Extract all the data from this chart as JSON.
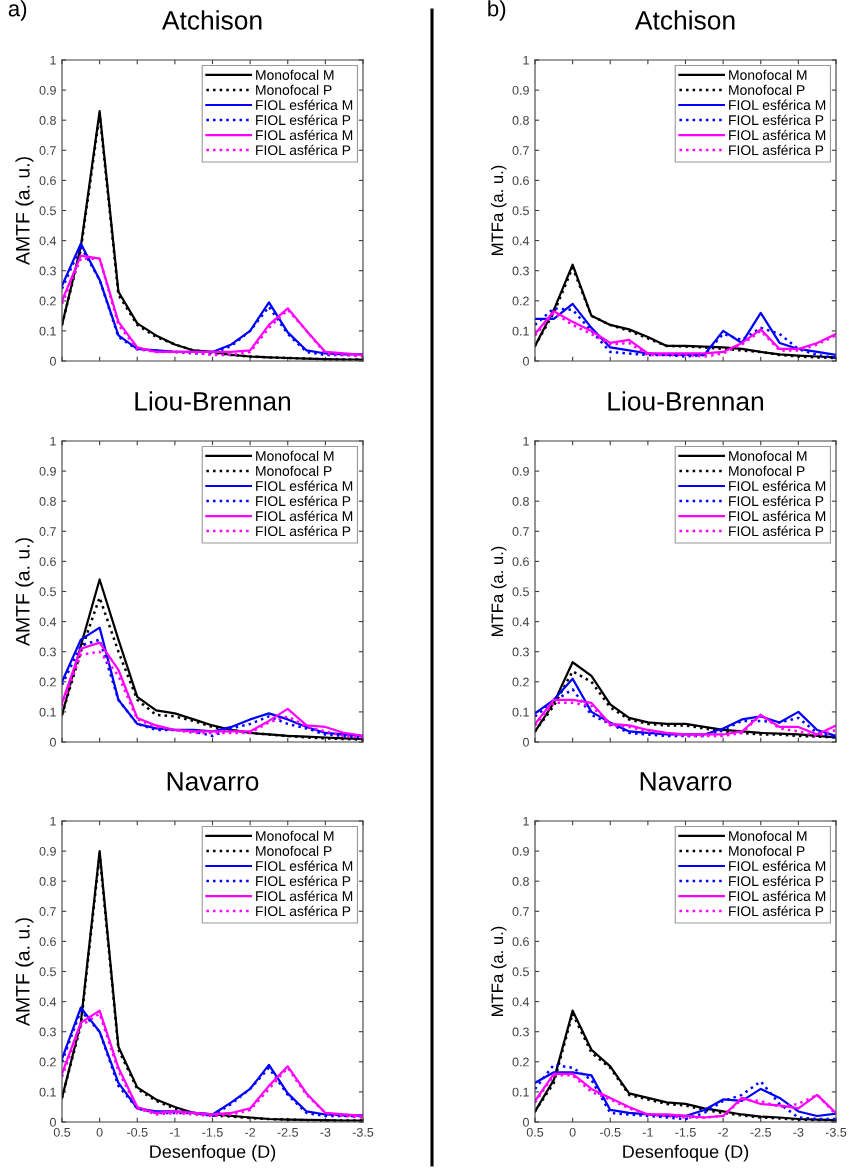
{
  "chart_data": [
    {
      "type": "line",
      "title": "Atchison",
      "ylabel": "AMTF (a. u.)",
      "annotations": [
        "a)"
      ],
      "x": [
        0.5,
        0.25,
        0,
        -0.25,
        -0.5,
        -0.75,
        -1,
        -1.25,
        -1.5,
        -1.75,
        -2,
        -2.25,
        -2.5,
        -2.75,
        -3,
        -3.25,
        -3.5
      ],
      "xlim": [
        0.5,
        -3.5
      ],
      "xticks": [
        0.5,
        0,
        -0.5,
        -1,
        -1.5,
        -2,
        -2.5,
        -3,
        -3.5
      ],
      "ylim": [
        0,
        1
      ],
      "yticks": [
        0,
        0.1,
        0.2,
        0.3,
        0.4,
        0.5,
        0.6,
        0.7,
        0.8,
        0.9,
        1
      ],
      "tick_labels": "y",
      "legend": "top right",
      "grid": false,
      "series": [
        {
          "name": "Monofocal M",
          "color": "#000000",
          "line_style": "solid",
          "values": [
            0.12,
            0.38,
            0.83,
            0.23,
            0.125,
            0.085,
            0.055,
            0.035,
            0.03,
            0.02,
            0.015,
            0.012,
            0.01,
            0.008,
            0.006,
            0.005,
            0.005
          ]
        },
        {
          "name": "Monofocal P",
          "color": "#000000",
          "line_style": "dotted",
          "values": [
            0.12,
            0.37,
            0.82,
            0.22,
            0.12,
            0.08,
            0.055,
            0.035,
            0.028,
            0.02,
            0.015,
            0.012,
            0.01,
            0.008,
            0.006,
            0.005,
            0.005
          ]
        },
        {
          "name": "FIOL esférica M",
          "color": "#0000ff",
          "line_style": "solid",
          "values": [
            0.25,
            0.39,
            0.27,
            0.085,
            0.04,
            0.035,
            0.03,
            0.03,
            0.03,
            0.055,
            0.1,
            0.195,
            0.095,
            0.035,
            0.025,
            0.022,
            0.022
          ]
        },
        {
          "name": "FIOL esférica P",
          "color": "#0000ff",
          "line_style": "dotted",
          "values": [
            0.24,
            0.38,
            0.27,
            0.08,
            0.038,
            0.035,
            0.03,
            0.025,
            0.025,
            0.05,
            0.1,
            0.18,
            0.09,
            0.03,
            0.02,
            0.02,
            0.02
          ]
        },
        {
          "name": "FIOL asférica M",
          "color": "#ff00ff",
          "line_style": "solid",
          "values": [
            0.2,
            0.35,
            0.34,
            0.13,
            0.045,
            0.03,
            0.03,
            0.03,
            0.03,
            0.03,
            0.035,
            0.12,
            0.175,
            0.1,
            0.03,
            0.025,
            0.02
          ]
        },
        {
          "name": "FIOL asférica P",
          "color": "#ff00ff",
          "line_style": "dotted",
          "values": [
            0.19,
            0.34,
            0.34,
            0.12,
            0.04,
            0.03,
            0.03,
            0.028,
            0.02,
            0.02,
            0.03,
            0.11,
            0.17,
            0.1,
            0.025,
            0.02,
            0.015
          ]
        }
      ]
    },
    {
      "type": "line",
      "title": "Atchison",
      "ylabel": "MTFa (a. u.)",
      "annotations": [
        "b)"
      ],
      "x": [
        0.5,
        0.25,
        0,
        -0.25,
        -0.5,
        -0.75,
        -1,
        -1.25,
        -1.5,
        -1.75,
        -2,
        -2.25,
        -2.5,
        -2.75,
        -3,
        -3.25,
        -3.5
      ],
      "xlim": [
        0.5,
        -3.5
      ],
      "xticks": [
        0.5,
        0,
        -0.5,
        -1,
        -1.5,
        -2,
        -2.5,
        -3,
        -3.5
      ],
      "ylim": [
        0,
        1
      ],
      "yticks": [
        0,
        0.1,
        0.2,
        0.3,
        0.4,
        0.5,
        0.6,
        0.7,
        0.8,
        0.9,
        1
      ],
      "tick_labels": "y",
      "legend": "top right",
      "grid": false,
      "series": [
        {
          "name": "Monofocal M",
          "color": "#000000",
          "line_style": "solid",
          "values": [
            0.05,
            0.17,
            0.32,
            0.15,
            0.12,
            0.105,
            0.08,
            0.05,
            0.05,
            0.048,
            0.045,
            0.04,
            0.03,
            0.022,
            0.018,
            0.015,
            0.012
          ]
        },
        {
          "name": "Monofocal P",
          "color": "#000000",
          "line_style": "dotted",
          "values": [
            0.05,
            0.16,
            0.31,
            0.15,
            0.12,
            0.1,
            0.075,
            0.05,
            0.048,
            0.045,
            0.04,
            0.035,
            0.03,
            0.02,
            0.015,
            0.012,
            0.01
          ]
        },
        {
          "name": "FIOL esférica M",
          "color": "#0000ff",
          "line_style": "solid",
          "values": [
            0.14,
            0.14,
            0.19,
            0.11,
            0.045,
            0.035,
            0.025,
            0.02,
            0.02,
            0.02,
            0.1,
            0.06,
            0.16,
            0.06,
            0.04,
            0.03,
            0.02
          ]
        },
        {
          "name": "FIOL esférica P",
          "color": "#0000ff",
          "line_style": "dotted",
          "values": [
            0.12,
            0.175,
            0.17,
            0.1,
            0.03,
            0.025,
            0.02,
            0.02,
            0.015,
            0.02,
            0.09,
            0.07,
            0.11,
            0.09,
            0.04,
            0.02,
            0.01
          ]
        },
        {
          "name": "FIOL asférica M",
          "color": "#ff00ff",
          "line_style": "solid",
          "values": [
            0.09,
            0.165,
            0.13,
            0.1,
            0.06,
            0.07,
            0.025,
            0.025,
            0.025,
            0.025,
            0.03,
            0.06,
            0.105,
            0.04,
            0.04,
            0.06,
            0.09
          ]
        },
        {
          "name": "FIOL asférica P",
          "color": "#ff00ff",
          "line_style": "dotted",
          "values": [
            0.085,
            0.16,
            0.12,
            0.09,
            0.055,
            0.06,
            0.02,
            0.02,
            0.02,
            0.015,
            0.025,
            0.055,
            0.1,
            0.035,
            0.035,
            0.055,
            0.085
          ]
        }
      ]
    },
    {
      "type": "line",
      "title": "Liou-Brennan",
      "ylabel": "AMTF (a. u.)",
      "x": [
        0.5,
        0.25,
        0,
        -0.25,
        -0.5,
        -0.75,
        -1,
        -1.25,
        -1.5,
        -1.75,
        -2,
        -2.25,
        -2.5,
        -2.75,
        -3,
        -3.25,
        -3.5
      ],
      "xlim": [
        0.5,
        -3.5
      ],
      "xticks": [
        0.5,
        0,
        -0.5,
        -1,
        -1.5,
        -2,
        -2.5,
        -3,
        -3.5
      ],
      "ylim": [
        0,
        1
      ],
      "yticks": [
        0,
        0.1,
        0.2,
        0.3,
        0.4,
        0.5,
        0.6,
        0.7,
        0.8,
        0.9,
        1
      ],
      "tick_labels": "y",
      "legend": "top right",
      "grid": false,
      "series": [
        {
          "name": "Monofocal M",
          "color": "#000000",
          "line_style": "solid",
          "values": [
            0.09,
            0.32,
            0.54,
            0.34,
            0.15,
            0.105,
            0.095,
            0.075,
            0.055,
            0.04,
            0.03,
            0.025,
            0.02,
            0.018,
            0.015,
            0.012,
            0.01
          ]
        },
        {
          "name": "Monofocal P",
          "color": "#000000",
          "line_style": "dotted",
          "values": [
            0.09,
            0.3,
            0.48,
            0.3,
            0.14,
            0.09,
            0.085,
            0.07,
            0.05,
            0.04,
            0.03,
            0.025,
            0.02,
            0.015,
            0.012,
            0.01,
            0.008
          ]
        },
        {
          "name": "FIOL esférica M",
          "color": "#0000ff",
          "line_style": "solid",
          "values": [
            0.2,
            0.34,
            0.38,
            0.14,
            0.06,
            0.045,
            0.04,
            0.04,
            0.035,
            0.05,
            0.075,
            0.095,
            0.075,
            0.05,
            0.03,
            0.025,
            0.02
          ]
        },
        {
          "name": "FIOL esférica P",
          "color": "#0000ff",
          "line_style": "dotted",
          "values": [
            0.19,
            0.32,
            0.34,
            0.14,
            0.06,
            0.04,
            0.04,
            0.035,
            0.02,
            0.045,
            0.06,
            0.085,
            0.06,
            0.045,
            0.025,
            0.02,
            0.015
          ]
        },
        {
          "name": "FIOL asférica M",
          "color": "#ff00ff",
          "line_style": "solid",
          "values": [
            0.13,
            0.31,
            0.33,
            0.24,
            0.08,
            0.055,
            0.04,
            0.035,
            0.035,
            0.035,
            0.035,
            0.07,
            0.11,
            0.055,
            0.05,
            0.03,
            0.02
          ]
        },
        {
          "name": "FIOL asférica P",
          "color": "#ff00ff",
          "line_style": "dotted",
          "values": [
            0.12,
            0.29,
            0.3,
            0.22,
            0.075,
            0.05,
            0.04,
            0.03,
            0.03,
            0.03,
            0.03,
            0.065,
            0.085,
            0.05,
            0.035,
            0.02,
            0.015
          ]
        }
      ]
    },
    {
      "type": "line",
      "title": "Liou-Brennan",
      "ylabel": "MTFa (a. u.)",
      "x": [
        0.5,
        0.25,
        0,
        -0.25,
        -0.5,
        -0.75,
        -1,
        -1.25,
        -1.5,
        -1.75,
        -2,
        -2.25,
        -2.5,
        -2.75,
        -3,
        -3.25,
        -3.5
      ],
      "xlim": [
        0.5,
        -3.5
      ],
      "xticks": [
        0.5,
        0,
        -0.5,
        -1,
        -1.5,
        -2,
        -2.5,
        -3,
        -3.5
      ],
      "ylim": [
        0,
        1
      ],
      "yticks": [
        0,
        0.1,
        0.2,
        0.3,
        0.4,
        0.5,
        0.6,
        0.7,
        0.8,
        0.9,
        1
      ],
      "tick_labels": "y",
      "legend": "top right",
      "grid": false,
      "series": [
        {
          "name": "Monofocal M",
          "color": "#000000",
          "line_style": "solid",
          "values": [
            0.035,
            0.13,
            0.265,
            0.22,
            0.125,
            0.08,
            0.065,
            0.06,
            0.06,
            0.05,
            0.04,
            0.035,
            0.03,
            0.028,
            0.025,
            0.02,
            0.015
          ]
        },
        {
          "name": "Monofocal P",
          "color": "#000000",
          "line_style": "dotted",
          "values": [
            0.035,
            0.12,
            0.235,
            0.2,
            0.115,
            0.075,
            0.06,
            0.055,
            0.055,
            0.045,
            0.035,
            0.03,
            0.025,
            0.025,
            0.02,
            0.018,
            0.015
          ]
        },
        {
          "name": "FIOL esférica M",
          "color": "#0000ff",
          "line_style": "solid",
          "values": [
            0.095,
            0.14,
            0.21,
            0.1,
            0.065,
            0.035,
            0.03,
            0.025,
            0.025,
            0.025,
            0.045,
            0.075,
            0.085,
            0.065,
            0.1,
            0.04,
            0.02
          ]
        },
        {
          "name": "FIOL esférica P",
          "color": "#0000ff",
          "line_style": "dotted",
          "values": [
            0.085,
            0.135,
            0.175,
            0.09,
            0.06,
            0.03,
            0.025,
            0.02,
            0.02,
            0.02,
            0.04,
            0.07,
            0.07,
            0.065,
            0.08,
            0.03,
            0.015
          ]
        },
        {
          "name": "FIOL asférica M",
          "color": "#ff00ff",
          "line_style": "solid",
          "values": [
            0.06,
            0.14,
            0.14,
            0.13,
            0.06,
            0.055,
            0.04,
            0.03,
            0.025,
            0.025,
            0.025,
            0.035,
            0.09,
            0.05,
            0.05,
            0.025,
            0.055
          ]
        },
        {
          "name": "FIOL asférica P",
          "color": "#ff00ff",
          "line_style": "dotted",
          "values": [
            0.055,
            0.13,
            0.13,
            0.12,
            0.055,
            0.05,
            0.035,
            0.03,
            0.02,
            0.02,
            0.02,
            0.03,
            0.09,
            0.045,
            0.035,
            0.02,
            0.04
          ]
        }
      ]
    },
    {
      "type": "line",
      "title": "Navarro",
      "ylabel": "AMTF (a. u.)",
      "xlabel": "Desenfoque (D)",
      "x": [
        0.5,
        0.25,
        0,
        -0.25,
        -0.5,
        -0.75,
        -1,
        -1.25,
        -1.5,
        -1.75,
        -2,
        -2.25,
        -2.5,
        -2.75,
        -3,
        -3.25,
        -3.5
      ],
      "xlim": [
        0.5,
        -3.5
      ],
      "xticks": [
        0.5,
        0,
        -0.5,
        -1,
        -1.5,
        -2,
        -2.5,
        -3,
        -3.5
      ],
      "ylim": [
        0,
        1
      ],
      "yticks": [
        0,
        0.1,
        0.2,
        0.3,
        0.4,
        0.5,
        0.6,
        0.7,
        0.8,
        0.9,
        1
      ],
      "legend": "top right",
      "grid": false,
      "series": [
        {
          "name": "Monofocal M",
          "color": "#000000",
          "line_style": "solid",
          "values": [
            0.08,
            0.33,
            0.9,
            0.25,
            0.115,
            0.075,
            0.05,
            0.03,
            0.025,
            0.02,
            0.015,
            0.01,
            0.008,
            0.007,
            0.006,
            0.005,
            0.005
          ]
        },
        {
          "name": "Monofocal P",
          "color": "#000000",
          "line_style": "dotted",
          "values": [
            0.08,
            0.32,
            0.89,
            0.24,
            0.11,
            0.07,
            0.045,
            0.03,
            0.022,
            0.018,
            0.013,
            0.01,
            0.008,
            0.006,
            0.005,
            0.005,
            0.005
          ]
        },
        {
          "name": "FIOL esférica M",
          "color": "#0000ff",
          "line_style": "solid",
          "values": [
            0.21,
            0.38,
            0.3,
            0.13,
            0.045,
            0.035,
            0.035,
            0.03,
            0.025,
            0.065,
            0.11,
            0.19,
            0.095,
            0.035,
            0.025,
            0.022,
            0.022
          ]
        },
        {
          "name": "FIOL esférica P",
          "color": "#0000ff",
          "line_style": "dotted",
          "values": [
            0.2,
            0.37,
            0.3,
            0.12,
            0.045,
            0.03,
            0.03,
            0.03,
            0.02,
            0.06,
            0.11,
            0.18,
            0.09,
            0.03,
            0.02,
            0.02,
            0.02
          ]
        },
        {
          "name": "FIOL asférica M",
          "color": "#ff00ff",
          "line_style": "solid",
          "values": [
            0.16,
            0.33,
            0.37,
            0.18,
            0.05,
            0.03,
            0.035,
            0.03,
            0.025,
            0.03,
            0.045,
            0.12,
            0.185,
            0.095,
            0.03,
            0.025,
            0.02
          ]
        },
        {
          "name": "FIOL asférica P",
          "color": "#ff00ff",
          "line_style": "dotted",
          "values": [
            0.15,
            0.32,
            0.36,
            0.17,
            0.045,
            0.025,
            0.03,
            0.025,
            0.02,
            0.025,
            0.04,
            0.11,
            0.18,
            0.09,
            0.03,
            0.02,
            0.015
          ]
        }
      ]
    },
    {
      "type": "line",
      "title": "Navarro",
      "ylabel": "MTFa (a. u.)",
      "xlabel": "Desenfoque (D)",
      "x": [
        0.5,
        0.25,
        0,
        -0.25,
        -0.5,
        -0.75,
        -1,
        -1.25,
        -1.5,
        -1.75,
        -2,
        -2.25,
        -2.5,
        -2.75,
        -3,
        -3.25,
        -3.5
      ],
      "xlim": [
        0.5,
        -3.5
      ],
      "xticks": [
        0.5,
        0,
        -0.5,
        -1,
        -1.5,
        -2,
        -2.5,
        -3,
        -3.5
      ],
      "ylim": [
        0,
        1
      ],
      "yticks": [
        0,
        0.1,
        0.2,
        0.3,
        0.4,
        0.5,
        0.6,
        0.7,
        0.8,
        0.9,
        1
      ],
      "legend": "top right",
      "grid": false,
      "series": [
        {
          "name": "Monofocal M",
          "color": "#000000",
          "line_style": "solid",
          "values": [
            0.035,
            0.14,
            0.37,
            0.24,
            0.185,
            0.095,
            0.08,
            0.065,
            0.06,
            0.045,
            0.035,
            0.025,
            0.018,
            0.015,
            0.01,
            0.008,
            0.006
          ]
        },
        {
          "name": "Monofocal P",
          "color": "#000000",
          "line_style": "dotted",
          "values": [
            0.035,
            0.13,
            0.36,
            0.23,
            0.18,
            0.09,
            0.075,
            0.06,
            0.055,
            0.04,
            0.03,
            0.022,
            0.015,
            0.012,
            0.008,
            0.006,
            0.005
          ]
        },
        {
          "name": "FIOL esférica M",
          "color": "#0000ff",
          "line_style": "solid",
          "values": [
            0.13,
            0.165,
            0.165,
            0.155,
            0.04,
            0.03,
            0.025,
            0.02,
            0.02,
            0.04,
            0.075,
            0.07,
            0.11,
            0.08,
            0.035,
            0.02,
            0.028
          ]
        },
        {
          "name": "FIOL esférica P",
          "color": "#0000ff",
          "line_style": "dotted",
          "values": [
            0.11,
            0.19,
            0.18,
            0.14,
            0.03,
            0.025,
            0.02,
            0.015,
            0.01,
            0.03,
            0.07,
            0.09,
            0.135,
            0.06,
            0.015,
            0.01,
            0.01
          ]
        },
        {
          "name": "FIOL asférica M",
          "color": "#ff00ff",
          "line_style": "solid",
          "values": [
            0.07,
            0.16,
            0.16,
            0.11,
            0.08,
            0.05,
            0.025,
            0.025,
            0.02,
            0.015,
            0.02,
            0.08,
            0.06,
            0.055,
            0.045,
            0.09,
            0.03
          ]
        },
        {
          "name": "FIOL asférica P",
          "color": "#ff00ff",
          "line_style": "dotted",
          "values": [
            0.065,
            0.155,
            0.155,
            0.1,
            0.075,
            0.045,
            0.025,
            0.02,
            0.015,
            0.015,
            0.02,
            0.075,
            0.07,
            0.05,
            0.06,
            0.09,
            0.025
          ]
        }
      ]
    }
  ]
}
